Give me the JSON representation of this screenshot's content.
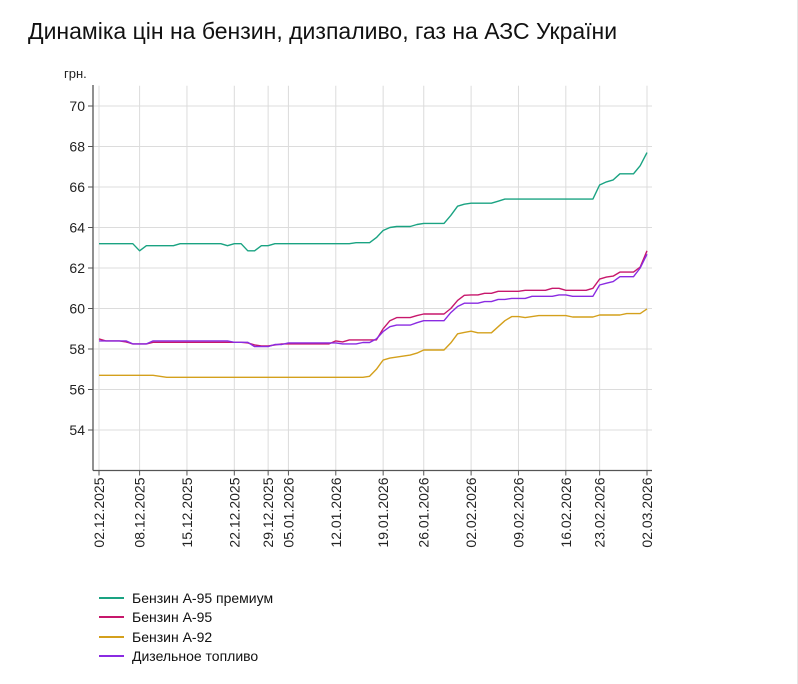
{
  "chart_data": {
    "type": "line",
    "title": "Динаміка цін на бензин, дизпаливо, газ на АЗС України",
    "ylabel": "грн.",
    "xlabel": "",
    "ylim": [
      52,
      71
    ],
    "y_ticks": [
      54,
      56,
      58,
      60,
      62,
      64,
      66,
      68,
      70
    ],
    "grid": true,
    "legend_position": "bottom-left",
    "x_ticks": [
      {
        "label": "02.12.2025",
        "index": 0
      },
      {
        "label": "08.12.2025",
        "index": 6
      },
      {
        "label": "15.12.2025",
        "index": 13
      },
      {
        "label": "22.12.2025",
        "index": 20
      },
      {
        "label": "29.12.2025",
        "index": 25
      },
      {
        "label": "05.01.2026",
        "index": 28
      },
      {
        "label": "12.01.2026",
        "index": 35
      },
      {
        "label": "19.01.2026",
        "index": 42
      },
      {
        "label": "26.01.2026",
        "index": 48
      },
      {
        "label": "02.02.2026",
        "index": 55
      },
      {
        "label": "09.02.2026",
        "index": 62
      },
      {
        "label": "16.02.2026",
        "index": 69
      },
      {
        "label": "23.02.2026",
        "index": 74
      },
      {
        "label": "02.03.2026",
        "index": 81
      }
    ],
    "series": [
      {
        "name": "Бензин А-95 премиум",
        "color": "#1aa382",
        "values": [
          63.2,
          63.2,
          63.2,
          63.2,
          63.2,
          63.2,
          62.85,
          63.1,
          63.1,
          63.1,
          63.1,
          63.1,
          63.2,
          63.2,
          63.2,
          63.2,
          63.2,
          63.2,
          63.2,
          63.1,
          63.2,
          63.2,
          62.85,
          62.85,
          63.1,
          63.1,
          63.2,
          63.2,
          63.2,
          63.2,
          63.2,
          63.2,
          63.2,
          63.2,
          63.2,
          63.2,
          63.2,
          63.2,
          63.25,
          63.25,
          63.25,
          63.5,
          63.85,
          64.0,
          64.05,
          64.05,
          64.05,
          64.15,
          64.2,
          64.2,
          64.2,
          64.2,
          64.6,
          65.05,
          65.15,
          65.2,
          65.2,
          65.2,
          65.2,
          65.3,
          65.4,
          65.4,
          65.4,
          65.4,
          65.4,
          65.4,
          65.4,
          65.4,
          65.4,
          65.4,
          65.4,
          65.4,
          65.4,
          65.4,
          66.1,
          66.25,
          66.35,
          66.65,
          66.65,
          66.65,
          67.05,
          67.7
        ]
      },
      {
        "name": "Бензин А-95",
        "color": "#c7176c",
        "values": [
          58.5,
          58.4,
          58.4,
          58.4,
          58.35,
          58.25,
          58.25,
          58.25,
          58.33,
          58.33,
          58.33,
          58.33,
          58.33,
          58.33,
          58.33,
          58.33,
          58.33,
          58.33,
          58.33,
          58.33,
          58.33,
          58.33,
          58.3,
          58.2,
          58.15,
          58.15,
          58.2,
          58.25,
          58.25,
          58.25,
          58.25,
          58.25,
          58.25,
          58.25,
          58.25,
          58.4,
          58.35,
          58.45,
          58.45,
          58.45,
          58.45,
          58.45,
          59.0,
          59.4,
          59.55,
          59.55,
          59.55,
          59.65,
          59.73,
          59.73,
          59.73,
          59.73,
          60.0,
          60.4,
          60.65,
          60.67,
          60.67,
          60.75,
          60.75,
          60.85,
          60.85,
          60.85,
          60.85,
          60.9,
          60.9,
          60.9,
          60.9,
          61.0,
          61.0,
          60.9,
          60.9,
          60.9,
          60.9,
          61.0,
          61.45,
          61.55,
          61.6,
          61.8,
          61.8,
          61.8,
          62.05,
          62.85
        ]
      },
      {
        "name": "Бензин А-92",
        "color": "#d4a01c",
        "values": [
          56.7,
          56.7,
          56.7,
          56.7,
          56.7,
          56.7,
          56.7,
          56.7,
          56.7,
          56.65,
          56.6,
          56.6,
          56.6,
          56.6,
          56.6,
          56.6,
          56.6,
          56.6,
          56.6,
          56.6,
          56.6,
          56.6,
          56.6,
          56.6,
          56.6,
          56.6,
          56.6,
          56.6,
          56.6,
          56.6,
          56.6,
          56.6,
          56.6,
          56.6,
          56.6,
          56.6,
          56.6,
          56.6,
          56.6,
          56.6,
          56.65,
          57.0,
          57.45,
          57.55,
          57.6,
          57.65,
          57.7,
          57.8,
          57.95,
          57.95,
          57.95,
          57.95,
          58.3,
          58.75,
          58.82,
          58.88,
          58.8,
          58.8,
          58.8,
          59.1,
          59.4,
          59.6,
          59.6,
          59.55,
          59.6,
          59.65,
          59.65,
          59.65,
          59.65,
          59.65,
          59.58,
          59.58,
          59.58,
          59.58,
          59.68,
          59.68,
          59.68,
          59.68,
          59.75,
          59.75,
          59.75,
          59.98
        ]
      },
      {
        "name": "Дизельное топливо",
        "color": "#8a2be2",
        "values": [
          58.4,
          58.4,
          58.4,
          58.4,
          58.4,
          58.25,
          58.25,
          58.25,
          58.4,
          58.4,
          58.4,
          58.4,
          58.4,
          58.4,
          58.4,
          58.4,
          58.4,
          58.4,
          58.4,
          58.4,
          58.33,
          58.33,
          58.33,
          58.12,
          58.12,
          58.12,
          58.22,
          58.22,
          58.3,
          58.3,
          58.3,
          58.3,
          58.3,
          58.3,
          58.3,
          58.3,
          58.25,
          58.25,
          58.25,
          58.32,
          58.32,
          58.5,
          58.86,
          59.1,
          59.18,
          59.18,
          59.18,
          59.3,
          59.4,
          59.4,
          59.4,
          59.4,
          59.8,
          60.1,
          60.26,
          60.26,
          60.26,
          60.34,
          60.34,
          60.45,
          60.45,
          60.5,
          60.5,
          60.5,
          60.6,
          60.6,
          60.6,
          60.6,
          60.67,
          60.67,
          60.6,
          60.6,
          60.6,
          60.6,
          61.16,
          61.25,
          61.33,
          61.57,
          61.57,
          61.57,
          62.0,
          62.68
        ]
      }
    ]
  }
}
